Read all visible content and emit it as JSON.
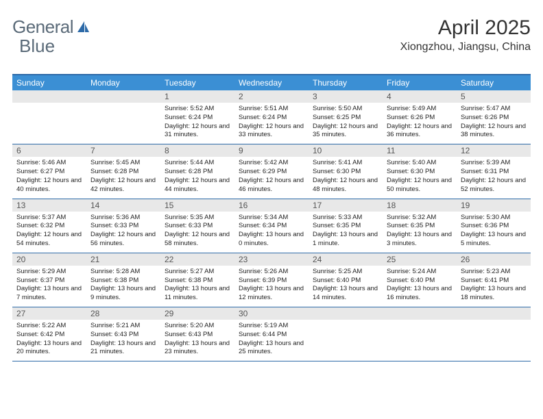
{
  "logo": {
    "part1": "General",
    "part2": "Blue"
  },
  "title": "April 2025",
  "location": "Xiongzhou, Jiangsu, China",
  "colors": {
    "header_bg": "#3b8fd4",
    "header_text": "#ffffff",
    "border": "#2d6aa8",
    "daynum_bg": "#e8e8e8",
    "logo_gray": "#5a6a78",
    "logo_blue": "#2d6aa8"
  },
  "day_names": [
    "Sunday",
    "Monday",
    "Tuesday",
    "Wednesday",
    "Thursday",
    "Friday",
    "Saturday"
  ],
  "weeks": [
    [
      {
        "num": "",
        "sunrise": "",
        "sunset": "",
        "daylight": ""
      },
      {
        "num": "",
        "sunrise": "",
        "sunset": "",
        "daylight": ""
      },
      {
        "num": "1",
        "sunrise": "Sunrise: 5:52 AM",
        "sunset": "Sunset: 6:24 PM",
        "daylight": "Daylight: 12 hours and 31 minutes."
      },
      {
        "num": "2",
        "sunrise": "Sunrise: 5:51 AM",
        "sunset": "Sunset: 6:24 PM",
        "daylight": "Daylight: 12 hours and 33 minutes."
      },
      {
        "num": "3",
        "sunrise": "Sunrise: 5:50 AM",
        "sunset": "Sunset: 6:25 PM",
        "daylight": "Daylight: 12 hours and 35 minutes."
      },
      {
        "num": "4",
        "sunrise": "Sunrise: 5:49 AM",
        "sunset": "Sunset: 6:26 PM",
        "daylight": "Daylight: 12 hours and 36 minutes."
      },
      {
        "num": "5",
        "sunrise": "Sunrise: 5:47 AM",
        "sunset": "Sunset: 6:26 PM",
        "daylight": "Daylight: 12 hours and 38 minutes."
      }
    ],
    [
      {
        "num": "6",
        "sunrise": "Sunrise: 5:46 AM",
        "sunset": "Sunset: 6:27 PM",
        "daylight": "Daylight: 12 hours and 40 minutes."
      },
      {
        "num": "7",
        "sunrise": "Sunrise: 5:45 AM",
        "sunset": "Sunset: 6:28 PM",
        "daylight": "Daylight: 12 hours and 42 minutes."
      },
      {
        "num": "8",
        "sunrise": "Sunrise: 5:44 AM",
        "sunset": "Sunset: 6:28 PM",
        "daylight": "Daylight: 12 hours and 44 minutes."
      },
      {
        "num": "9",
        "sunrise": "Sunrise: 5:42 AM",
        "sunset": "Sunset: 6:29 PM",
        "daylight": "Daylight: 12 hours and 46 minutes."
      },
      {
        "num": "10",
        "sunrise": "Sunrise: 5:41 AM",
        "sunset": "Sunset: 6:30 PM",
        "daylight": "Daylight: 12 hours and 48 minutes."
      },
      {
        "num": "11",
        "sunrise": "Sunrise: 5:40 AM",
        "sunset": "Sunset: 6:30 PM",
        "daylight": "Daylight: 12 hours and 50 minutes."
      },
      {
        "num": "12",
        "sunrise": "Sunrise: 5:39 AM",
        "sunset": "Sunset: 6:31 PM",
        "daylight": "Daylight: 12 hours and 52 minutes."
      }
    ],
    [
      {
        "num": "13",
        "sunrise": "Sunrise: 5:37 AM",
        "sunset": "Sunset: 6:32 PM",
        "daylight": "Daylight: 12 hours and 54 minutes."
      },
      {
        "num": "14",
        "sunrise": "Sunrise: 5:36 AM",
        "sunset": "Sunset: 6:33 PM",
        "daylight": "Daylight: 12 hours and 56 minutes."
      },
      {
        "num": "15",
        "sunrise": "Sunrise: 5:35 AM",
        "sunset": "Sunset: 6:33 PM",
        "daylight": "Daylight: 12 hours and 58 minutes."
      },
      {
        "num": "16",
        "sunrise": "Sunrise: 5:34 AM",
        "sunset": "Sunset: 6:34 PM",
        "daylight": "Daylight: 13 hours and 0 minutes."
      },
      {
        "num": "17",
        "sunrise": "Sunrise: 5:33 AM",
        "sunset": "Sunset: 6:35 PM",
        "daylight": "Daylight: 13 hours and 1 minute."
      },
      {
        "num": "18",
        "sunrise": "Sunrise: 5:32 AM",
        "sunset": "Sunset: 6:35 PM",
        "daylight": "Daylight: 13 hours and 3 minutes."
      },
      {
        "num": "19",
        "sunrise": "Sunrise: 5:30 AM",
        "sunset": "Sunset: 6:36 PM",
        "daylight": "Daylight: 13 hours and 5 minutes."
      }
    ],
    [
      {
        "num": "20",
        "sunrise": "Sunrise: 5:29 AM",
        "sunset": "Sunset: 6:37 PM",
        "daylight": "Daylight: 13 hours and 7 minutes."
      },
      {
        "num": "21",
        "sunrise": "Sunrise: 5:28 AM",
        "sunset": "Sunset: 6:38 PM",
        "daylight": "Daylight: 13 hours and 9 minutes."
      },
      {
        "num": "22",
        "sunrise": "Sunrise: 5:27 AM",
        "sunset": "Sunset: 6:38 PM",
        "daylight": "Daylight: 13 hours and 11 minutes."
      },
      {
        "num": "23",
        "sunrise": "Sunrise: 5:26 AM",
        "sunset": "Sunset: 6:39 PM",
        "daylight": "Daylight: 13 hours and 12 minutes."
      },
      {
        "num": "24",
        "sunrise": "Sunrise: 5:25 AM",
        "sunset": "Sunset: 6:40 PM",
        "daylight": "Daylight: 13 hours and 14 minutes."
      },
      {
        "num": "25",
        "sunrise": "Sunrise: 5:24 AM",
        "sunset": "Sunset: 6:40 PM",
        "daylight": "Daylight: 13 hours and 16 minutes."
      },
      {
        "num": "26",
        "sunrise": "Sunrise: 5:23 AM",
        "sunset": "Sunset: 6:41 PM",
        "daylight": "Daylight: 13 hours and 18 minutes."
      }
    ],
    [
      {
        "num": "27",
        "sunrise": "Sunrise: 5:22 AM",
        "sunset": "Sunset: 6:42 PM",
        "daylight": "Daylight: 13 hours and 20 minutes."
      },
      {
        "num": "28",
        "sunrise": "Sunrise: 5:21 AM",
        "sunset": "Sunset: 6:43 PM",
        "daylight": "Daylight: 13 hours and 21 minutes."
      },
      {
        "num": "29",
        "sunrise": "Sunrise: 5:20 AM",
        "sunset": "Sunset: 6:43 PM",
        "daylight": "Daylight: 13 hours and 23 minutes."
      },
      {
        "num": "30",
        "sunrise": "Sunrise: 5:19 AM",
        "sunset": "Sunset: 6:44 PM",
        "daylight": "Daylight: 13 hours and 25 minutes."
      },
      {
        "num": "",
        "sunrise": "",
        "sunset": "",
        "daylight": ""
      },
      {
        "num": "",
        "sunrise": "",
        "sunset": "",
        "daylight": ""
      },
      {
        "num": "",
        "sunrise": "",
        "sunset": "",
        "daylight": ""
      }
    ]
  ]
}
